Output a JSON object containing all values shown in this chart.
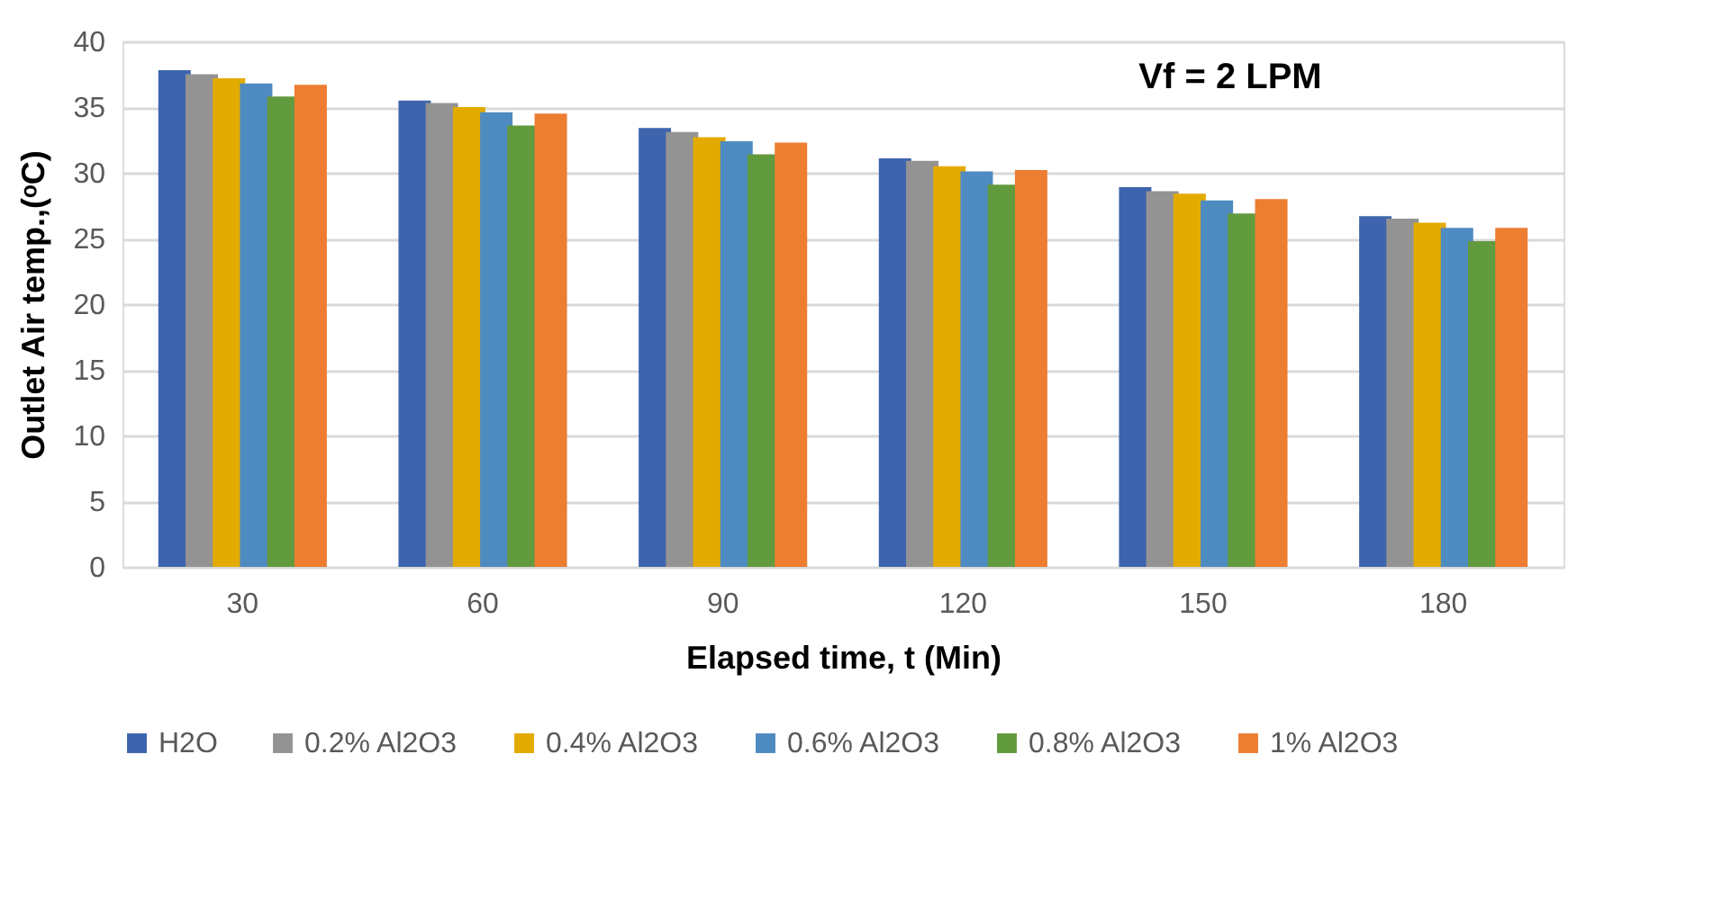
{
  "chart_data": {
    "type": "bar",
    "xlabel": "Elapsed time, t (Min)",
    "ylabel": "Outlet Air temp.,(ᵒC)",
    "annotations": [
      "Vf = 2 LPM"
    ],
    "categories": [
      "30",
      "60",
      "90",
      "120",
      "150",
      "180"
    ],
    "series": [
      {
        "name": "H2O",
        "color": "#3e64ad",
        "values": [
          37.8,
          35.5,
          33.4,
          31.1,
          28.9,
          26.7
        ]
      },
      {
        "name": "0.2% Al2O3",
        "color": "#939393",
        "values": [
          37.5,
          35.3,
          33.1,
          30.9,
          28.6,
          26.5
        ]
      },
      {
        "name": "0.4% Al2O3",
        "color": "#e3ab00",
        "values": [
          37.2,
          35.0,
          32.7,
          30.5,
          28.4,
          26.2
        ]
      },
      {
        "name": "0.6% Al2O3",
        "color": "#4e8bc0",
        "values": [
          36.8,
          34.6,
          32.4,
          30.1,
          27.9,
          25.8
        ]
      },
      {
        "name": "0.8% Al2O3",
        "color": "#629a3e",
        "values": [
          35.8,
          33.6,
          31.4,
          29.1,
          26.9,
          24.8
        ]
      },
      {
        "name": "1% Al2O3",
        "color": "#ed7d31",
        "values": [
          36.7,
          34.5,
          32.3,
          30.2,
          28.0,
          25.8
        ]
      }
    ],
    "ylim": [
      0,
      40
    ],
    "yticks": [
      0,
      5,
      10,
      15,
      20,
      25,
      30,
      35,
      40
    ],
    "grid": "y",
    "legend": "bottom"
  }
}
